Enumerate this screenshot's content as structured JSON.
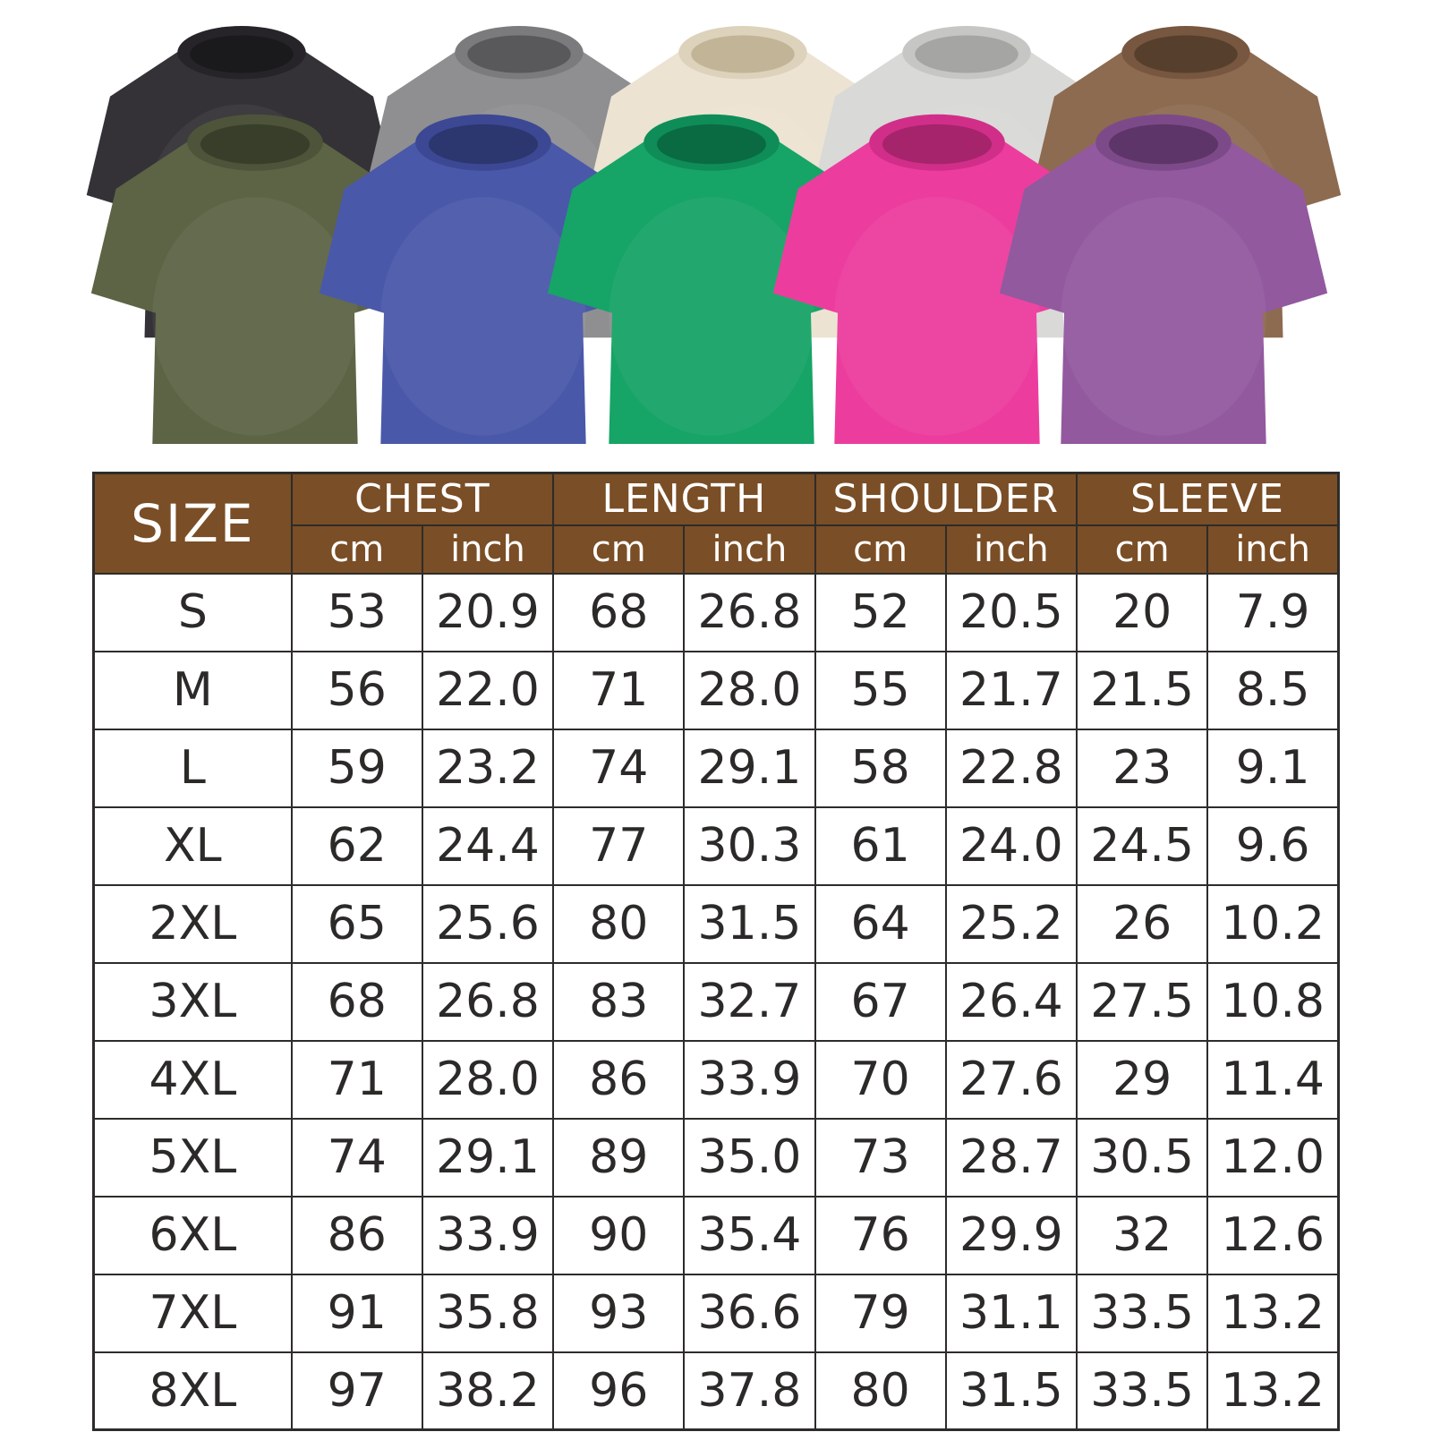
{
  "gallery": {
    "shirts": [
      {
        "id": "black-washed",
        "row": "back",
        "color": "#343236",
        "collar_color": "#262428",
        "inner_color": "#1a191c"
      },
      {
        "id": "gray-washed",
        "row": "back",
        "color": "#8f8f91",
        "collar_color": "#7b7b7d",
        "inner_color": "#59595b"
      },
      {
        "id": "cream-washed",
        "row": "back",
        "color": "#ece3d2",
        "collar_color": "#ddd2bb",
        "inner_color": "#c2b496"
      },
      {
        "id": "light-gray-washed",
        "row": "back",
        "color": "#d9d9d7",
        "collar_color": "#c6c6c4",
        "inner_color": "#a5a5a3"
      },
      {
        "id": "brown-washed",
        "row": "back",
        "color": "#8d6b50",
        "collar_color": "#77573f",
        "inner_color": "#573f2d"
      },
      {
        "id": "army-green-washed",
        "row": "front",
        "color": "#5c6445",
        "collar_color": "#4d543a",
        "inner_color": "#383e2a"
      },
      {
        "id": "blue-washed",
        "row": "front",
        "color": "#4a58aa",
        "collar_color": "#3c4893",
        "inner_color": "#2c366f"
      },
      {
        "id": "green-washed",
        "row": "front",
        "color": "#17a467",
        "collar_color": "#0f8d58",
        "inner_color": "#0a6b43"
      },
      {
        "id": "rose-pink-washed",
        "row": "front",
        "color": "#ec3d9e",
        "collar_color": "#d12e89",
        "inner_color": "#a5246c"
      },
      {
        "id": "purple-washed",
        "row": "front",
        "color": "#92599f",
        "collar_color": "#7d4a89",
        "inner_color": "#5e3568"
      }
    ]
  },
  "size_chart": {
    "title_header": "SIZE",
    "groups": [
      "CHEST",
      "LENGTH",
      "SHOULDER",
      "SLEEVE"
    ],
    "unit_headers": [
      "cm",
      "inch"
    ],
    "header_bg": "#7a4e26",
    "header_text_color": "#ffffff",
    "body_text_color": "#2b2a29",
    "border_color": "#2e2c2a",
    "rows": [
      {
        "size": "S",
        "values": [
          "53",
          "20.9",
          "68",
          "26.8",
          "52",
          "20.5",
          "20",
          "7.9"
        ]
      },
      {
        "size": "M",
        "values": [
          "56",
          "22.0",
          "71",
          "28.0",
          "55",
          "21.7",
          "21.5",
          "8.5"
        ]
      },
      {
        "size": "L",
        "values": [
          "59",
          "23.2",
          "74",
          "29.1",
          "58",
          "22.8",
          "23",
          "9.1"
        ]
      },
      {
        "size": "XL",
        "values": [
          "62",
          "24.4",
          "77",
          "30.3",
          "61",
          "24.0",
          "24.5",
          "9.6"
        ]
      },
      {
        "size": "2XL",
        "values": [
          "65",
          "25.6",
          "80",
          "31.5",
          "64",
          "25.2",
          "26",
          "10.2"
        ]
      },
      {
        "size": "3XL",
        "values": [
          "68",
          "26.8",
          "83",
          "32.7",
          "67",
          "26.4",
          "27.5",
          "10.8"
        ]
      },
      {
        "size": "4XL",
        "values": [
          "71",
          "28.0",
          "86",
          "33.9",
          "70",
          "27.6",
          "29",
          "11.4"
        ]
      },
      {
        "size": "5XL",
        "values": [
          "74",
          "29.1",
          "89",
          "35.0",
          "73",
          "28.7",
          "30.5",
          "12.0"
        ]
      },
      {
        "size": "6XL",
        "values": [
          "86",
          "33.9",
          "90",
          "35.4",
          "76",
          "29.9",
          "32",
          "12.6"
        ]
      },
      {
        "size": "7XL",
        "values": [
          "91",
          "35.8",
          "93",
          "36.6",
          "79",
          "31.1",
          "33.5",
          "13.2"
        ]
      },
      {
        "size": "8XL",
        "values": [
          "97",
          "38.2",
          "96",
          "37.8",
          "80",
          "31.5",
          "33.5",
          "13.2"
        ]
      }
    ]
  }
}
